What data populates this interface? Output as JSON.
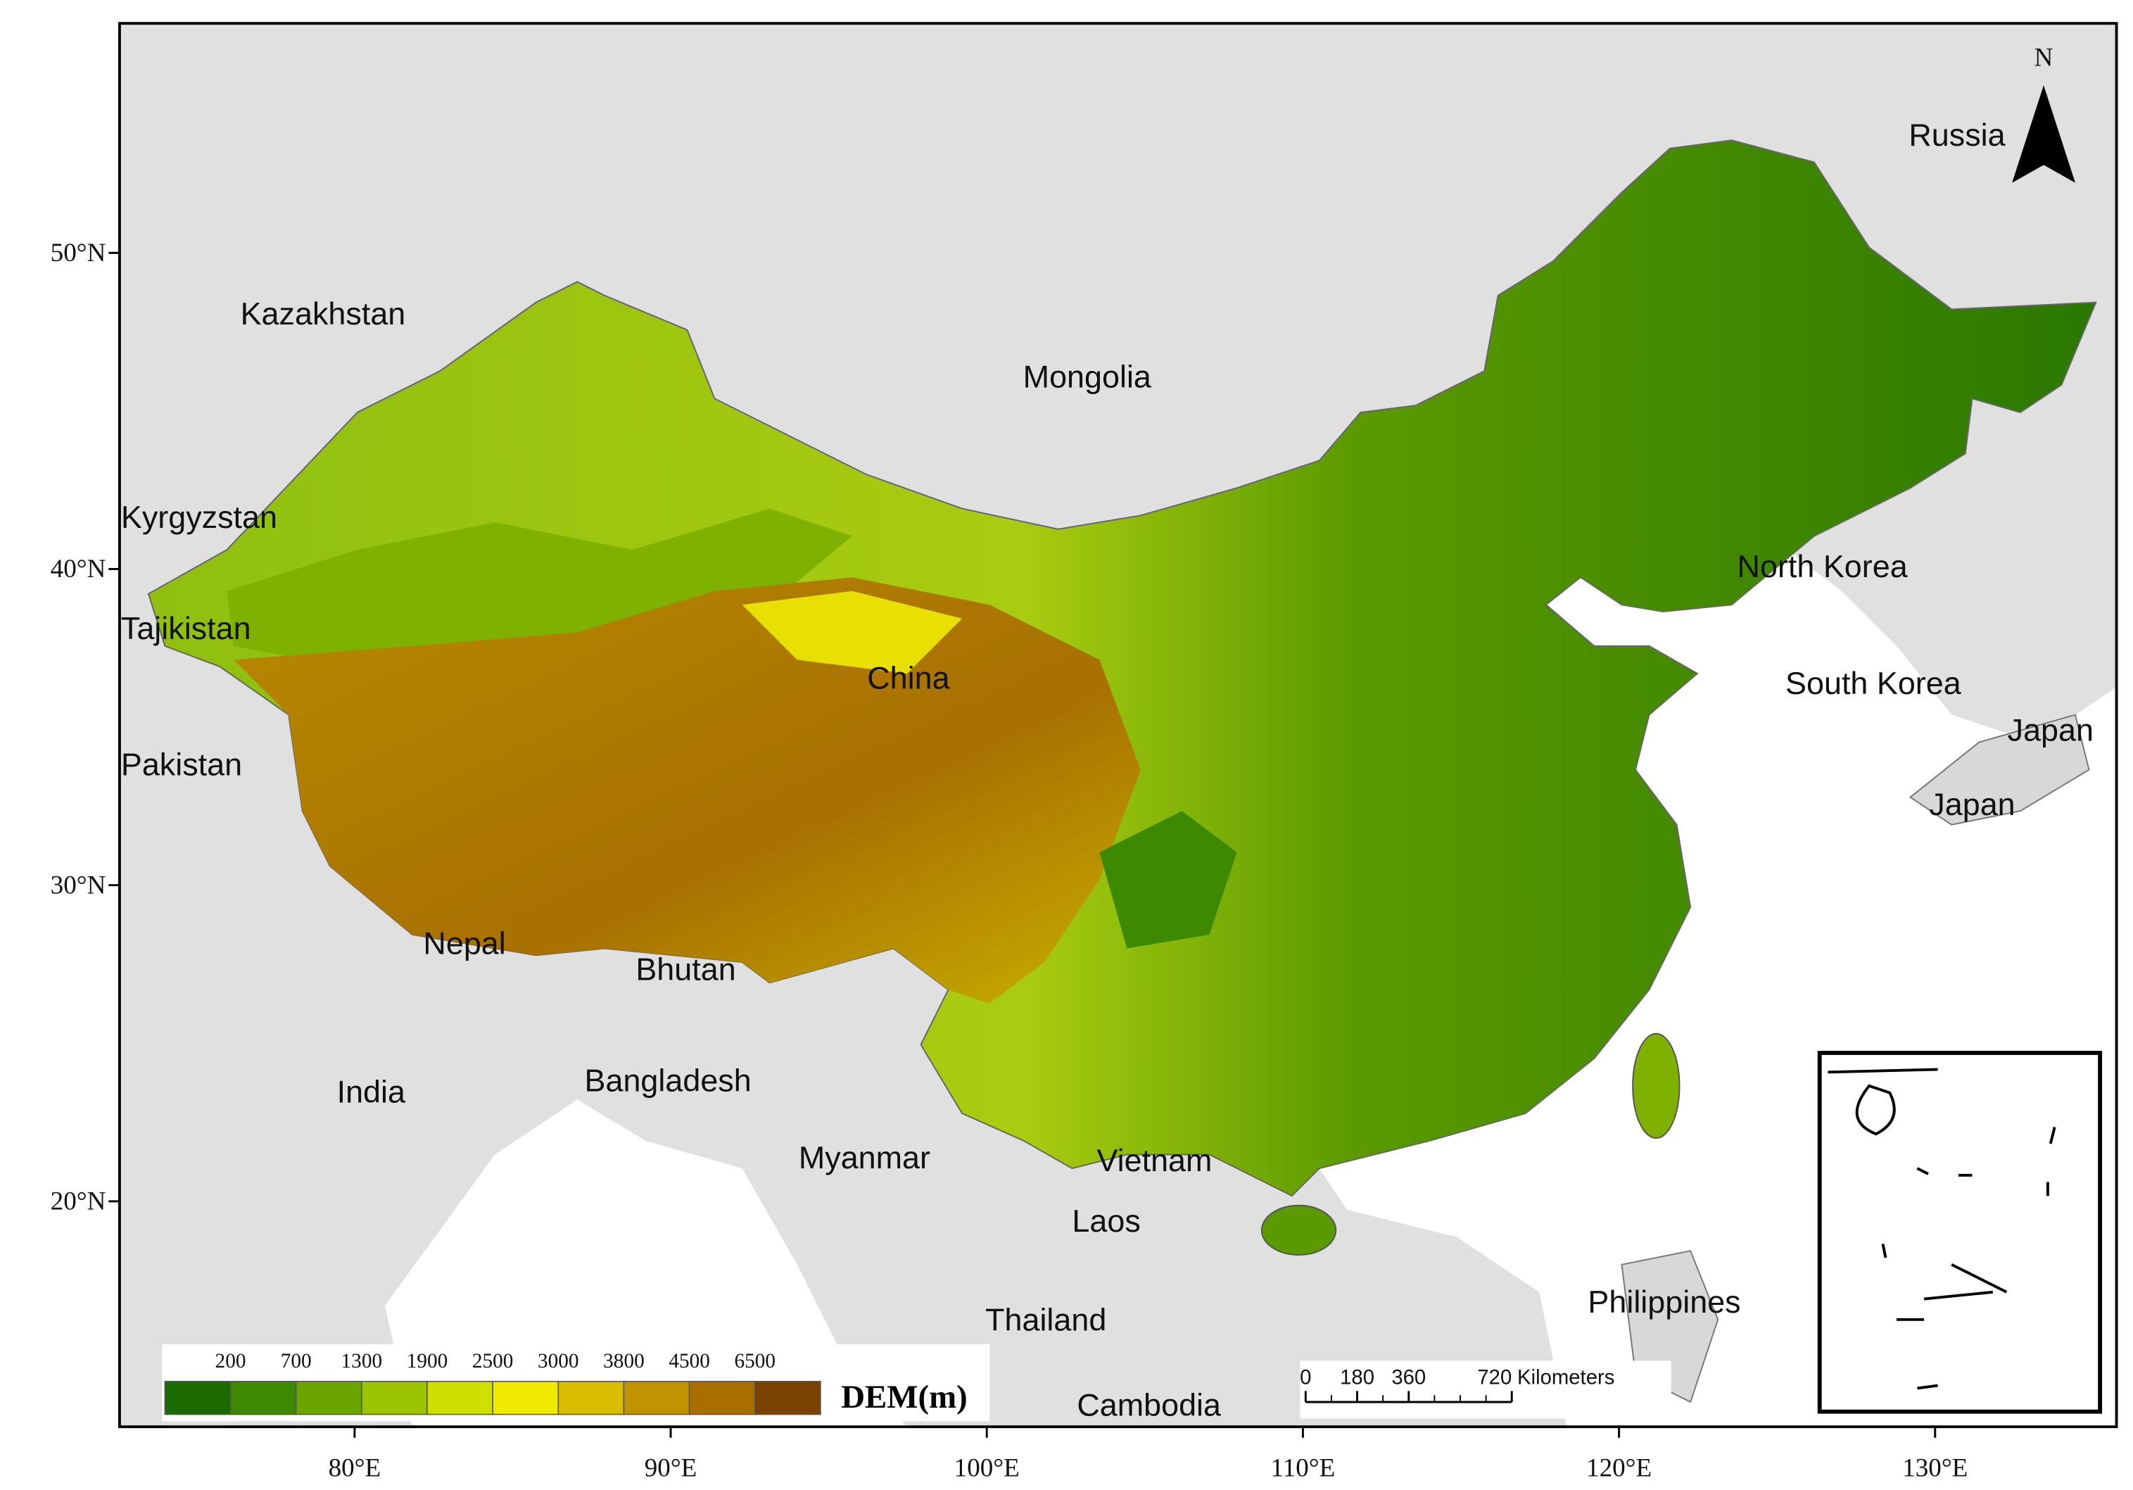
{
  "map": {
    "countries": [
      "Russia",
      "Kazakhstan",
      "Mongolia",
      "Kyrgyzstan",
      "Tajikistan",
      "China",
      "North Korea",
      "South Korea",
      "Japan",
      "Japan",
      "Pakistan",
      "Nepal",
      "Bhutan",
      "India",
      "Bangladesh",
      "Myanmar",
      "Vietnam",
      "Laos",
      "Thailand",
      "Philippines",
      "Cambodia"
    ]
  },
  "axes": {
    "lat_ticks": [
      {
        "value": 50,
        "label": "50°N"
      },
      {
        "value": 40,
        "label": "40°N"
      },
      {
        "value": 30,
        "label": "30°N"
      },
      {
        "value": 20,
        "label": "20°N"
      }
    ],
    "lon_ticks": [
      {
        "value": 80,
        "label": "80°E"
      },
      {
        "value": 90,
        "label": "90°E"
      },
      {
        "value": 100,
        "label": "100°E"
      },
      {
        "value": 110,
        "label": "110°E"
      },
      {
        "value": 120,
        "label": "120°E"
      },
      {
        "value": 130,
        "label": "130°E"
      }
    ]
  },
  "legend": {
    "title": "DEM(m)",
    "labels": [
      200,
      700,
      1300,
      1900,
      2500,
      3000,
      3800,
      4500,
      6500
    ],
    "colors": [
      "#1a6b00",
      "#3d8a00",
      "#6aa500",
      "#9cc400",
      "#cfe000",
      "#f0ea00",
      "#d9bd00",
      "#bf9400",
      "#a86e00",
      "#7a4200"
    ]
  },
  "scale_bar": {
    "ticks": [
      0,
      180,
      360,
      720
    ],
    "unit": "Kilometers"
  },
  "north_arrow": {
    "label": "N"
  }
}
